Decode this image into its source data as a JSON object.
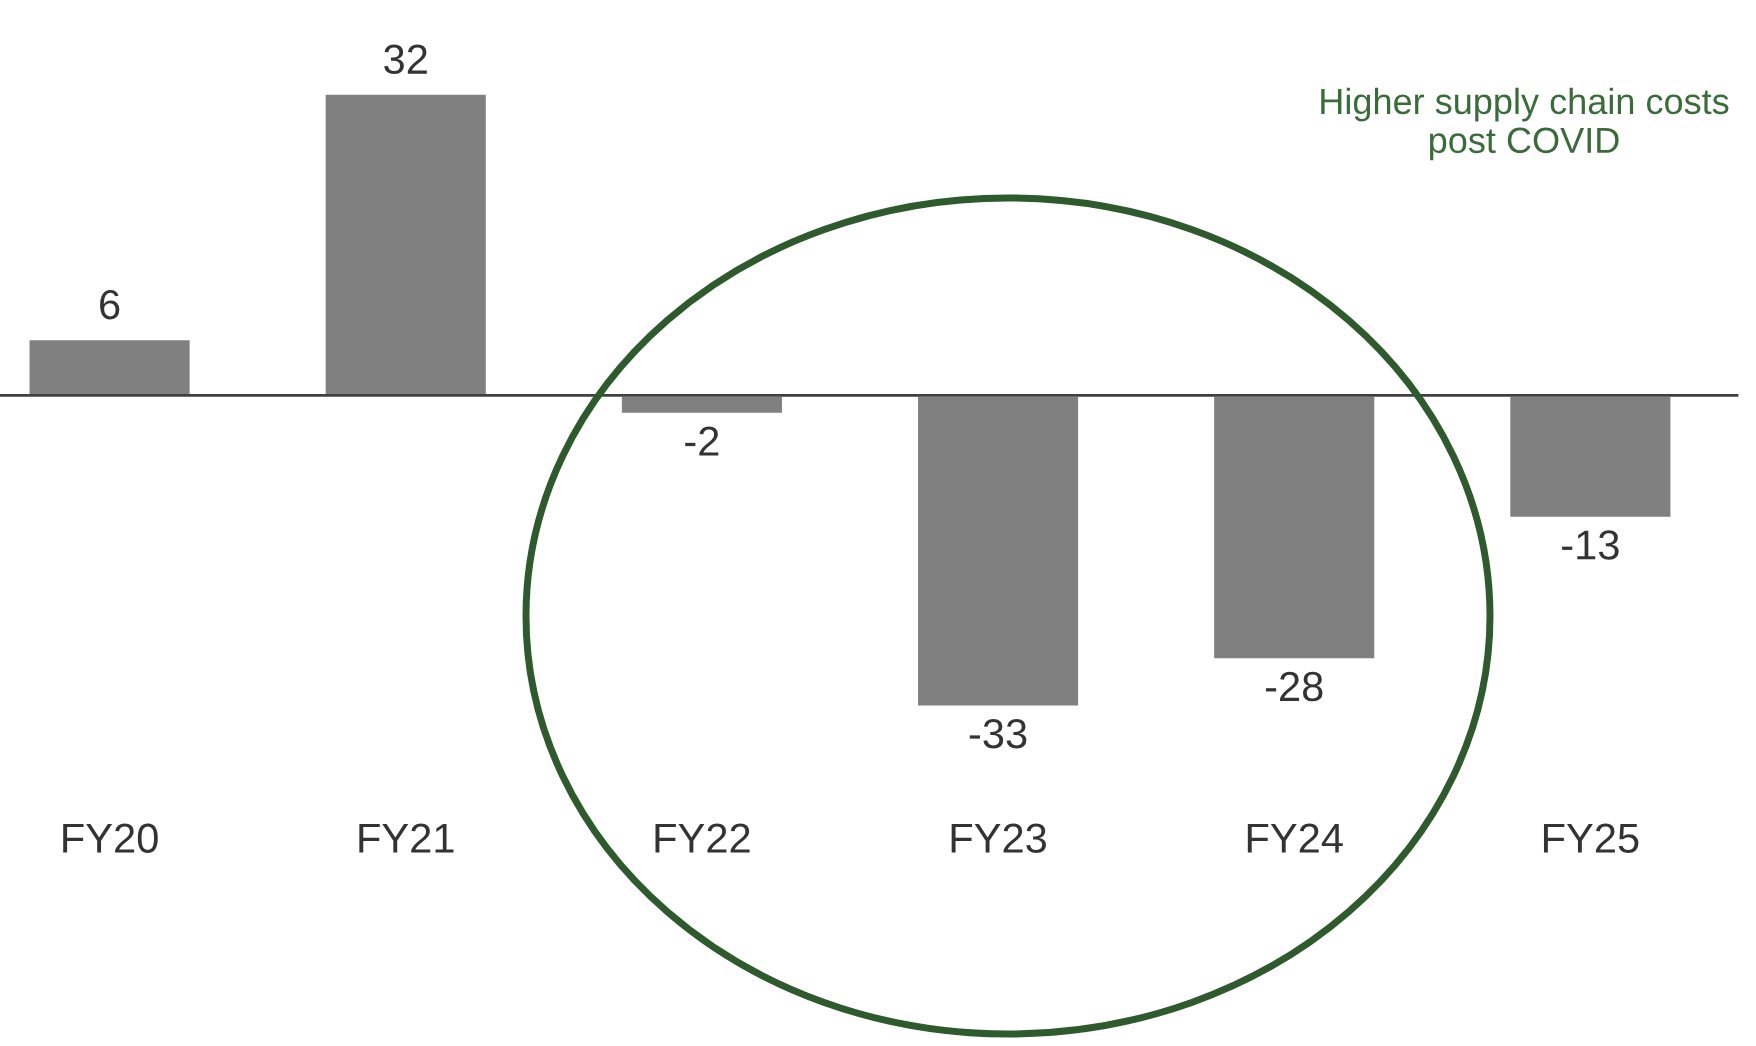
{
  "chart_data": {
    "type": "bar",
    "categories": [
      "FY20",
      "FY21",
      "FY22",
      "FY23",
      "FY24",
      "FY25"
    ],
    "values": [
      6,
      32,
      -2,
      -33,
      -28,
      -13
    ],
    "color": "#808080",
    "data_labels": true,
    "tick_labels": "x",
    "grid": false,
    "annotations": [
      "Higher supply chain costs post COVID"
    ]
  }
}
